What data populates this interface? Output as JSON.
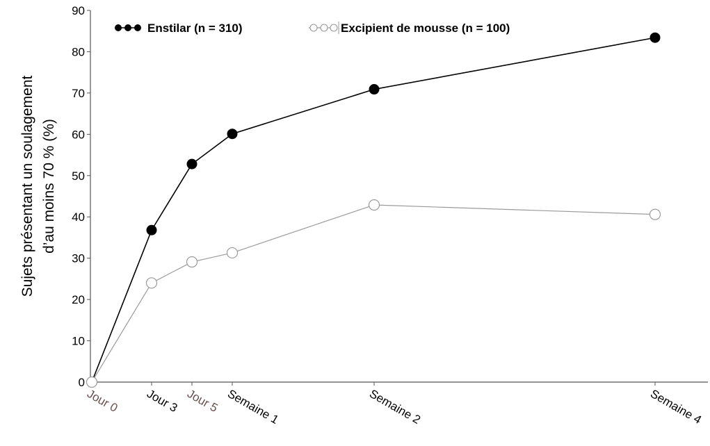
{
  "chart_data": {
    "type": "line",
    "title": "",
    "ylabel_line1": "Sujets présentant un soulagement",
    "ylabel_line2": "d’au moins 70 % (%)",
    "xlabel": "",
    "ylim": [
      0,
      90
    ],
    "yticks": [
      0,
      10,
      20,
      30,
      40,
      50,
      60,
      70,
      80,
      90
    ],
    "x": [
      {
        "label": "Jour 0",
        "day": 0,
        "color": "#6b4f4f"
      },
      {
        "label": "Jour 3",
        "day": 3,
        "color": "#000000"
      },
      {
        "label": "Jour 5",
        "day": 5,
        "color": "#6b4f4f"
      },
      {
        "label": "Semaine 1",
        "day": 7,
        "color": "#000000"
      },
      {
        "label": "Semaine 2",
        "day": 14,
        "color": "#000000"
      },
      {
        "label": "Semaine 4",
        "day": 28,
        "color": "#000000"
      }
    ],
    "series": [
      {
        "name": "Enstilar (n = 310)",
        "style": "filled",
        "color": "#000000",
        "values": [
          0,
          36.8,
          52.8,
          60.1,
          70.9,
          83.4
        ]
      },
      {
        "name": "Excipient de mousse (n = 100)",
        "style": "hollow",
        "color": "#9a9a9a",
        "values": [
          0,
          24.0,
          29.1,
          31.3,
          42.9,
          40.6
        ]
      }
    ],
    "legend_position": "top-left",
    "grid": false
  }
}
